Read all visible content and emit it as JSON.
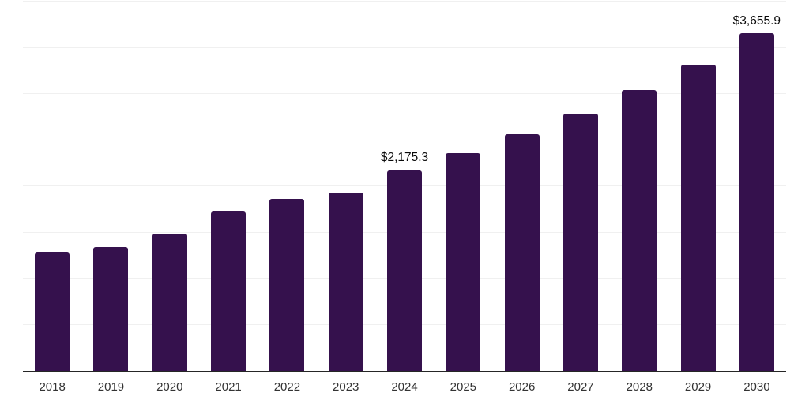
{
  "chart_data": {
    "type": "bar",
    "title": "",
    "subtitle": "",
    "xlabel": "",
    "ylabel": "",
    "categories": [
      "2018",
      "2019",
      "2020",
      "2021",
      "2022",
      "2023",
      "2024",
      "2025",
      "2026",
      "2027",
      "2028",
      "2029",
      "2030"
    ],
    "values": [
      1285,
      1345,
      1490,
      1730,
      1865,
      1935,
      2175.3,
      2360,
      2560,
      2790,
      3045,
      3315,
      3655.9
    ],
    "point_labels": [
      "",
      "",
      "",
      "",
      "",
      "",
      "$2,175.3",
      "",
      "",
      "",
      "",
      "",
      "$3,655.9"
    ],
    "ylim": [
      0,
      4000
    ],
    "gridline_step": 500,
    "grid": true,
    "legend": false,
    "colors": {
      "bar": "#35114D",
      "gridline": "#f0f0f0",
      "axis_line": "#262626",
      "tick_label": "#333333",
      "data_label": "#0a0a0a",
      "background": "#ffffff"
    }
  }
}
